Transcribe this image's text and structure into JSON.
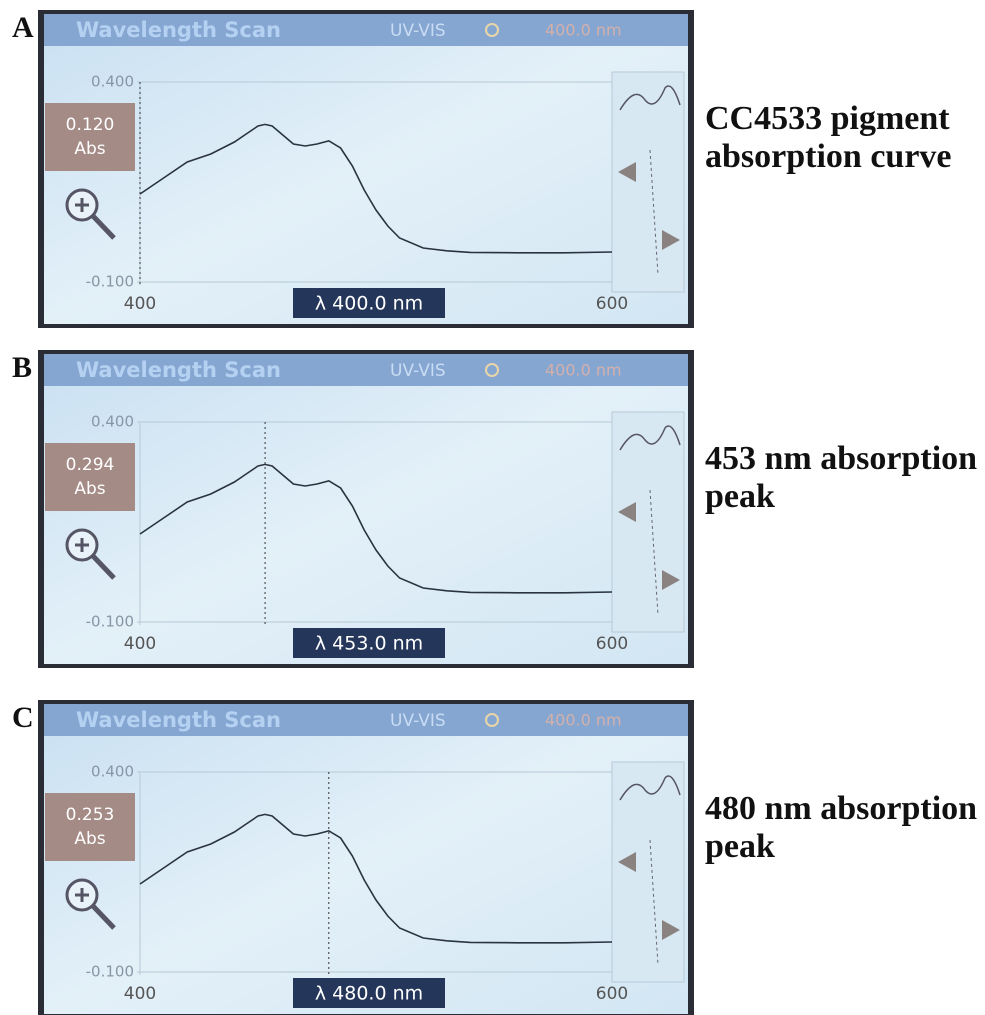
{
  "chart_data": [
    {
      "type": "line",
      "panel_label": "A",
      "header_title": "Wavelength Scan",
      "mode": "UV-VIS",
      "header_wavelength": "400.0 nm",
      "readout_value": "0.120",
      "readout_unit": "Abs",
      "cursor_label": "λ 400.0 nm",
      "cursor_x": 400,
      "caption": "CC4533 pigment absorption curve",
      "x": [
        400,
        410,
        420,
        430,
        440,
        445,
        450,
        453,
        456,
        460,
        465,
        470,
        475,
        480,
        485,
        490,
        495,
        500,
        505,
        510,
        520,
        530,
        540,
        560,
        580,
        600
      ],
      "values": [
        0.12,
        0.16,
        0.2,
        0.22,
        0.25,
        0.27,
        0.29,
        0.294,
        0.29,
        0.27,
        0.245,
        0.24,
        0.245,
        0.253,
        0.235,
        0.19,
        0.13,
        0.08,
        0.04,
        0.01,
        -0.015,
        -0.022,
        -0.026,
        -0.027,
        -0.027,
        -0.025
      ],
      "color": "#2a3440",
      "xlim": [
        400,
        600
      ],
      "ylim": [
        -0.1,
        0.4
      ],
      "xticks": [
        400,
        600
      ],
      "yticks": [
        {
          "value": 0.4,
          "label": "0.400"
        },
        {
          "value": -0.1,
          "label": "-0.100"
        }
      ]
    },
    {
      "type": "line",
      "panel_label": "B",
      "header_title": "Wavelength Scan",
      "mode": "UV-VIS",
      "header_wavelength": "400.0 nm",
      "readout_value": "0.294",
      "readout_unit": "Abs",
      "cursor_label": "λ 453.0 nm",
      "cursor_x": 453,
      "caption": "453 nm absorption peak",
      "x": [
        400,
        410,
        420,
        430,
        440,
        445,
        450,
        453,
        456,
        460,
        465,
        470,
        475,
        480,
        485,
        490,
        495,
        500,
        505,
        510,
        520,
        530,
        540,
        560,
        580,
        600
      ],
      "values": [
        0.12,
        0.16,
        0.2,
        0.22,
        0.25,
        0.27,
        0.29,
        0.294,
        0.29,
        0.27,
        0.245,
        0.24,
        0.245,
        0.253,
        0.235,
        0.19,
        0.13,
        0.08,
        0.04,
        0.01,
        -0.015,
        -0.022,
        -0.026,
        -0.027,
        -0.027,
        -0.025
      ],
      "color": "#2a3440",
      "xlim": [
        400,
        600
      ],
      "ylim": [
        -0.1,
        0.4
      ],
      "xticks": [
        400,
        600
      ],
      "yticks": [
        {
          "value": 0.4,
          "label": "0.400"
        },
        {
          "value": -0.1,
          "label": "-0.100"
        }
      ]
    },
    {
      "type": "line",
      "panel_label": "C",
      "header_title": "Wavelength Scan",
      "mode": "UV-VIS",
      "header_wavelength": "400.0 nm",
      "readout_value": "0.253",
      "readout_unit": "Abs",
      "cursor_label": "λ 480.0 nm",
      "cursor_x": 480,
      "caption": "480 nm absorption peak",
      "x": [
        400,
        410,
        420,
        430,
        440,
        445,
        450,
        453,
        456,
        460,
        465,
        470,
        475,
        480,
        485,
        490,
        495,
        500,
        505,
        510,
        520,
        530,
        540,
        560,
        580,
        600
      ],
      "values": [
        0.12,
        0.16,
        0.2,
        0.22,
        0.25,
        0.27,
        0.29,
        0.294,
        0.29,
        0.27,
        0.245,
        0.24,
        0.245,
        0.253,
        0.235,
        0.19,
        0.13,
        0.08,
        0.04,
        0.01,
        -0.015,
        -0.022,
        -0.026,
        -0.027,
        -0.027,
        -0.025
      ],
      "color": "#2a3440",
      "xlim": [
        400,
        600
      ],
      "ylim": [
        -0.1,
        0.4
      ],
      "xticks": [
        400,
        600
      ],
      "yticks": [
        {
          "value": 0.4,
          "label": "0.400"
        },
        {
          "value": -0.1,
          "label": "-0.100"
        }
      ]
    }
  ]
}
